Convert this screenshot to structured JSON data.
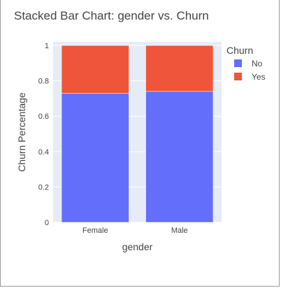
{
  "chart_data": {
    "type": "bar",
    "stacked": true,
    "title": "Stacked Bar Chart: gender vs. Churn",
    "xlabel": "gender",
    "ylabel": "Churn Percentage",
    "categories": [
      "Female",
      "Male"
    ],
    "series": [
      {
        "name": "No",
        "values": [
          0.73,
          0.74
        ],
        "color": "#636efa"
      },
      {
        "name": "Yes",
        "values": [
          0.27,
          0.26
        ],
        "color": "#ef553b"
      }
    ],
    "ylim": [
      0,
      1.02
    ],
    "yticks": [
      {
        "value": 0,
        "label": "0"
      },
      {
        "value": 0.2,
        "label": "0.2"
      },
      {
        "value": 0.4,
        "label": "0.4"
      },
      {
        "value": 0.6,
        "label": "0.6"
      },
      {
        "value": 0.8,
        "label": "0.8"
      },
      {
        "value": 1,
        "label": "1"
      }
    ],
    "grid": true,
    "legend": {
      "title": "Churn",
      "placement": "top-right"
    },
    "colors": {
      "plot_bg": "#e5ecf6",
      "grid": "#ffffff",
      "text": "#444444"
    }
  }
}
